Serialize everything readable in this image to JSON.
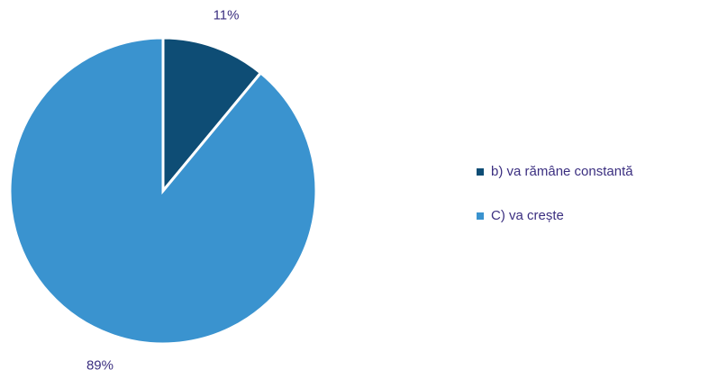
{
  "chart_data": {
    "type": "pie",
    "categories": [
      "b)  va rămâne constantă",
      "C) va crește"
    ],
    "values": [
      11,
      89
    ],
    "value_labels": [
      "11%",
      "89%"
    ],
    "colors": [
      "#0e4d75",
      "#3a93cf"
    ],
    "legend": "right"
  }
}
